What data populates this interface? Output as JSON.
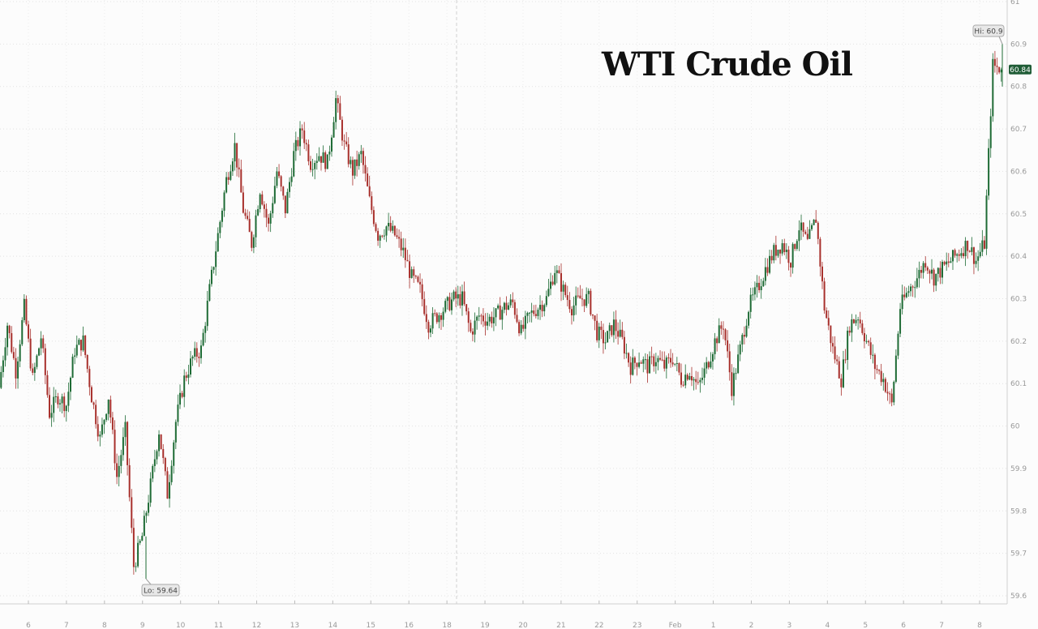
{
  "chart_data": {
    "type": "candlestick",
    "title": "WTI Crude Oil",
    "ylim": [
      59.6,
      61.0
    ],
    "y_ticks": [
      "59.6",
      "59.7",
      "59.8",
      "59.9",
      "60",
      "60.1",
      "60.2",
      "60.3",
      "60.4",
      "60.5",
      "60.6",
      "60.7",
      "60.8",
      "60.9",
      "61"
    ],
    "x_ticks": [
      "6",
      "7",
      "8",
      "9",
      "10",
      "11",
      "12",
      "13",
      "14",
      "15",
      "16",
      "18",
      "19",
      "20",
      "21",
      "22",
      "23",
      "Feb",
      "1",
      "2",
      "3",
      "4",
      "5",
      "6",
      "7",
      "8"
    ],
    "grid": true,
    "closes": [
      60.09,
      60.24,
      60.13,
      60.28,
      60.11,
      60.21,
      60.03,
      60.07,
      60.05,
      60.18,
      60.2,
      60.07,
      59.97,
      60.07,
      59.88,
      59.99,
      59.67,
      59.74,
      59.86,
      59.99,
      59.84,
      60.01,
      60.11,
      60.16,
      60.18,
      60.32,
      60.45,
      60.58,
      60.66,
      60.51,
      60.43,
      60.56,
      60.47,
      60.6,
      60.51,
      60.64,
      60.7,
      60.62,
      60.64,
      60.62,
      60.77,
      60.66,
      60.6,
      60.64,
      60.53,
      60.45,
      60.47,
      60.45,
      60.41,
      60.35,
      60.32,
      60.24,
      60.26,
      60.28,
      60.3,
      60.3,
      60.22,
      60.26,
      60.25,
      60.26,
      60.28,
      60.29,
      60.22,
      60.26,
      60.28,
      60.3,
      60.37,
      60.32,
      60.28,
      60.3,
      60.3,
      60.22,
      60.2,
      60.24,
      60.2,
      60.14,
      60.16,
      60.14,
      60.16,
      60.14,
      60.16,
      60.11,
      60.13,
      60.09,
      60.14,
      60.2,
      60.24,
      60.09,
      60.18,
      60.28,
      60.32,
      60.37,
      60.41,
      60.43,
      60.39,
      60.47,
      60.43,
      60.49,
      60.28,
      60.18,
      60.11,
      60.24,
      60.26,
      60.2,
      60.14,
      60.11,
      60.05,
      60.28,
      60.32,
      60.35,
      60.39,
      60.35,
      60.37,
      60.39,
      60.41,
      60.43,
      60.39,
      60.43,
      60.85,
      60.84
    ],
    "high_label": "Hi: 60.9",
    "low_label": "Lo: 59.64",
    "high": 60.9,
    "low": 59.64,
    "last_price": "60.84",
    "colors": {
      "up": "#1e6b35",
      "down": "#a8302c",
      "last_tag": "#1f5c36"
    }
  }
}
